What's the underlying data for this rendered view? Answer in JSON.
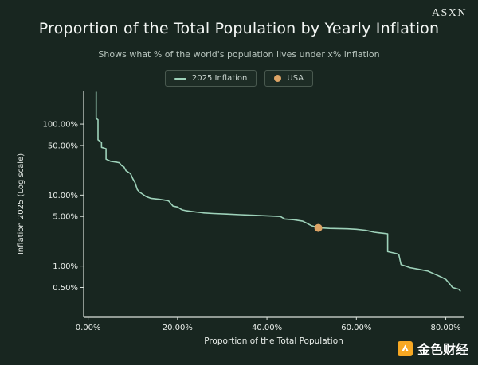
{
  "brand": "ASXN",
  "header": {
    "title": "Proportion of the Total Population by Yearly Inflation",
    "subtitle": "Shows what % of the world's population lives under x% inflation"
  },
  "legend": {
    "items": [
      {
        "label": "2025 Inflation",
        "type": "line",
        "color": "#9ed2ba"
      },
      {
        "label": "USA",
        "type": "dot",
        "color": "#dda466"
      }
    ]
  },
  "watermark": {
    "text": "金色财经",
    "icon": "jinse-logo",
    "icon_color": "#f7a823"
  },
  "colors": {
    "background": "#182620",
    "axis": "#d9e0da",
    "tick_text": "#e8ede9",
    "line": "#9ed2ba",
    "usa_dot": "#dda466"
  },
  "chart_data": {
    "type": "line",
    "title": "Proportion of the Total Population by Yearly Inflation",
    "subtitle": "Shows what % of the world's population lives under x% inflation",
    "xlabel": "Proportion of the Total Population",
    "ylabel": "Inflation 2025 (Log scale)",
    "y_scale": "log",
    "grid": false,
    "legend_position": "top-center",
    "xlim": [
      -1,
      84
    ],
    "ylim": [
      0.19,
      296
    ],
    "x_ticks": [
      0,
      20,
      40,
      60,
      80
    ],
    "x_tick_labels": [
      "0.00%",
      "20.00%",
      "40.00%",
      "60.00%",
      "80.00%"
    ],
    "y_ticks": [
      100,
      50,
      10,
      5,
      1,
      0.5
    ],
    "y_tick_labels": [
      "100.00%",
      "50.00%",
      "10.00%",
      "5.00%",
      "1.00%",
      "0.50%"
    ],
    "series": [
      {
        "name": "2025 Inflation",
        "color": "#9ed2ba",
        "points": [
          [
            1.8,
            285
          ],
          [
            1.8,
            120
          ],
          [
            2.2,
            115
          ],
          [
            2.2,
            60
          ],
          [
            3,
            55
          ],
          [
            3,
            47
          ],
          [
            4,
            45
          ],
          [
            4,
            32
          ],
          [
            4.5,
            31
          ],
          [
            5,
            30
          ],
          [
            6.5,
            29
          ],
          [
            7,
            28.5
          ],
          [
            7.5,
            26
          ],
          [
            8,
            25
          ],
          [
            8.5,
            22
          ],
          [
            9,
            21
          ],
          [
            9.5,
            20
          ],
          [
            10,
            17
          ],
          [
            10.5,
            15
          ],
          [
            11,
            12
          ],
          [
            11.5,
            11
          ],
          [
            12,
            10.5
          ],
          [
            13,
            9.5
          ],
          [
            14,
            9
          ],
          [
            16,
            8.7
          ],
          [
            17,
            8.5
          ],
          [
            18,
            8.3
          ],
          [
            19,
            7
          ],
          [
            20,
            6.8
          ],
          [
            21,
            6.2
          ],
          [
            22,
            6
          ],
          [
            24,
            5.8
          ],
          [
            26,
            5.6
          ],
          [
            28,
            5.5
          ],
          [
            31,
            5.4
          ],
          [
            34,
            5.3
          ],
          [
            37,
            5.2
          ],
          [
            40,
            5.1
          ],
          [
            43,
            5
          ],
          [
            44,
            4.6
          ],
          [
            46,
            4.5
          ],
          [
            48,
            4.3
          ],
          [
            49,
            4.0
          ],
          [
            50,
            3.7
          ],
          [
            51,
            3.55
          ],
          [
            52,
            3.45
          ],
          [
            54,
            3.4
          ],
          [
            56,
            3.38
          ],
          [
            58,
            3.35
          ],
          [
            60,
            3.3
          ],
          [
            62,
            3.2
          ],
          [
            63,
            3.1
          ],
          [
            64,
            3.0
          ],
          [
            65,
            2.95
          ],
          [
            66,
            2.9
          ],
          [
            67,
            2.85
          ],
          [
            67,
            1.6
          ],
          [
            68,
            1.55
          ],
          [
            69,
            1.5
          ],
          [
            69.5,
            1.45
          ],
          [
            70,
            1.05
          ],
          [
            71,
            1.0
          ],
          [
            72,
            0.95
          ],
          [
            74,
            0.9
          ],
          [
            76,
            0.85
          ],
          [
            78,
            0.75
          ],
          [
            79,
            0.7
          ],
          [
            80,
            0.65
          ],
          [
            81,
            0.55
          ],
          [
            81.5,
            0.5
          ],
          [
            83,
            0.47
          ],
          [
            83.3,
            0.44
          ]
        ]
      }
    ],
    "markers": [
      {
        "name": "USA",
        "x": 51.5,
        "y": 3.45,
        "color": "#dda466"
      }
    ]
  }
}
